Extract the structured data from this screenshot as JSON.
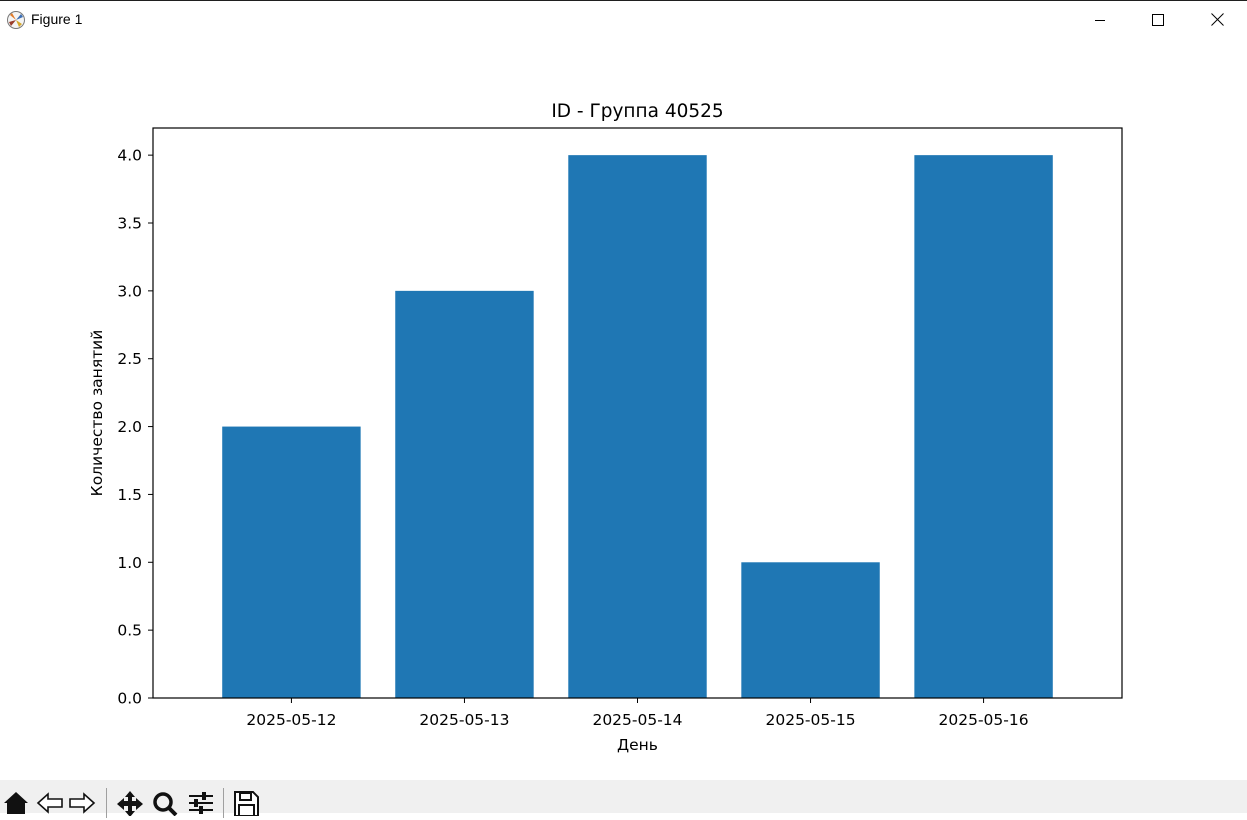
{
  "window": {
    "title": "Figure 1",
    "icon": "matplotlib-icon",
    "controls": [
      "minimize-icon",
      "maximize-icon",
      "close-icon"
    ]
  },
  "toolbar": {
    "buttons": [
      "home-icon",
      "back-icon",
      "forward-icon",
      "pan-icon",
      "zoom-icon",
      "configure-subplots-icon",
      "save-icon"
    ]
  },
  "chart_data": {
    "type": "bar",
    "title": "ID - Группа 40525",
    "xlabel": "День",
    "ylabel": "Количество занятий",
    "categories": [
      "2025-05-12",
      "2025-05-13",
      "2025-05-14",
      "2025-05-15",
      "2025-05-16"
    ],
    "values": [
      2,
      3,
      4,
      1,
      4
    ],
    "ylim": [
      0,
      4.2
    ],
    "yticks": [
      "0.0",
      "0.5",
      "1.0",
      "1.5",
      "2.0",
      "2.5",
      "3.0",
      "3.5",
      "4.0"
    ],
    "bar_color": "#1f77b4",
    "grid": false,
    "legend": false
  }
}
